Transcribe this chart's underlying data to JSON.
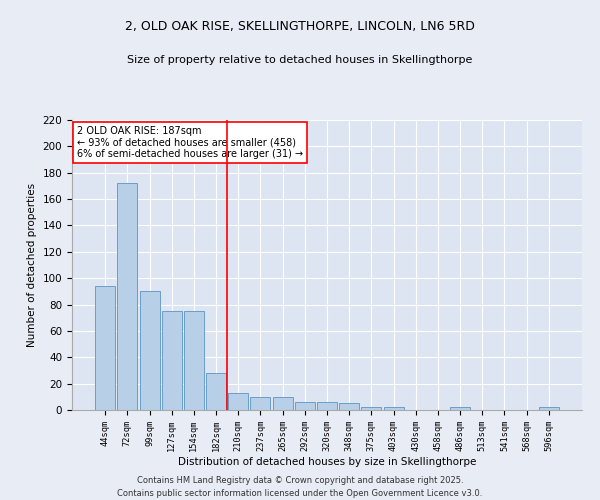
{
  "title1": "2, OLD OAK RISE, SKELLINGTHORPE, LINCOLN, LN6 5RD",
  "title2": "Size of property relative to detached houses in Skellingthorpe",
  "xlabel": "Distribution of detached houses by size in Skellingthorpe",
  "ylabel": "Number of detached properties",
  "categories": [
    "44sqm",
    "72sqm",
    "99sqm",
    "127sqm",
    "154sqm",
    "182sqm",
    "210sqm",
    "237sqm",
    "265sqm",
    "292sqm",
    "320sqm",
    "348sqm",
    "375sqm",
    "403sqm",
    "430sqm",
    "458sqm",
    "486sqm",
    "513sqm",
    "541sqm",
    "568sqm",
    "596sqm"
  ],
  "values": [
    94,
    172,
    90,
    75,
    75,
    28,
    13,
    10,
    10,
    6,
    6,
    5,
    2,
    2,
    0,
    0,
    2,
    0,
    0,
    0,
    2
  ],
  "bar_color": "#b8cfe8",
  "bar_edge_color": "#6a9fc8",
  "vline_index": 5,
  "vline_color": "red",
  "annotation_text": "2 OLD OAK RISE: 187sqm\n← 93% of detached houses are smaller (458)\n6% of semi-detached houses are larger (31) →",
  "annotation_box_color": "white",
  "annotation_box_edge": "red",
  "ylim": [
    0,
    220
  ],
  "yticks": [
    0,
    20,
    40,
    60,
    80,
    100,
    120,
    140,
    160,
    180,
    200,
    220
  ],
  "fig_background": "#e8ecf5",
  "ax_background": "#dde5f2",
  "grid_color": "white",
  "footer1": "Contains HM Land Registry data © Crown copyright and database right 2025.",
  "footer2": "Contains public sector information licensed under the Open Government Licence v3.0."
}
